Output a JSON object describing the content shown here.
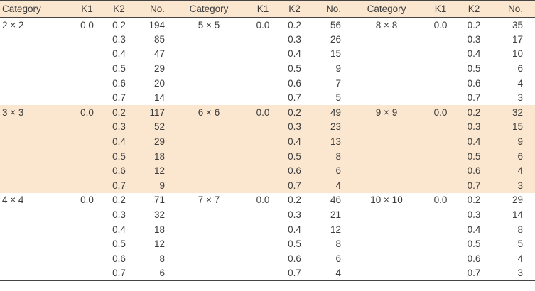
{
  "colors": {
    "band": "#fbe7cf",
    "text": "#3c3c3c",
    "rule": "#454545",
    "page_background": "#ffffff"
  },
  "table": {
    "headers": [
      "Category",
      "K1",
      "K2",
      "No.",
      "Category",
      "K1",
      "K2",
      "No.",
      "Category",
      "K1",
      "K2",
      "No."
    ],
    "highlight_rows": [
      6,
      11
    ],
    "rows": [
      [
        "2 × 2",
        "0.0",
        "0.2",
        "194",
        "5 × 5",
        "0.0",
        "0.2",
        "56",
        "8 × 8",
        "0.0",
        "0.2",
        "35"
      ],
      [
        "",
        "",
        "0.3",
        "85",
        "",
        "",
        "0.3",
        "26",
        "",
        "",
        "0.3",
        "17"
      ],
      [
        "",
        "",
        "0.4",
        "47",
        "",
        "",
        "0.4",
        "15",
        "",
        "",
        "0.4",
        "10"
      ],
      [
        "",
        "",
        "0.5",
        "29",
        "",
        "",
        "0.5",
        "9",
        "",
        "",
        "0.5",
        "6"
      ],
      [
        "",
        "",
        "0.6",
        "20",
        "",
        "",
        "0.6",
        "7",
        "",
        "",
        "0.6",
        "4"
      ],
      [
        "",
        "",
        "0.7",
        "14",
        "",
        "",
        "0.7",
        "5",
        "",
        "",
        "0.7",
        "3"
      ],
      [
        "3 × 3",
        "0.0",
        "0.2",
        "117",
        "6 × 6",
        "0.0",
        "0.2",
        "49",
        "9 × 9",
        "0.0",
        "0.2",
        "32"
      ],
      [
        "",
        "",
        "0.3",
        "52",
        "",
        "",
        "0.3",
        "23",
        "",
        "",
        "0.3",
        "15"
      ],
      [
        "",
        "",
        "0.4",
        "29",
        "",
        "",
        "0.4",
        "13",
        "",
        "",
        "0.4",
        "9"
      ],
      [
        "",
        "",
        "0.5",
        "18",
        "",
        "",
        "0.5",
        "8",
        "",
        "",
        "0.5",
        "6"
      ],
      [
        "",
        "",
        "0.6",
        "12",
        "",
        "",
        "0.6",
        "6",
        "",
        "",
        "0.6",
        "4"
      ],
      [
        "",
        "",
        "0.7",
        "9",
        "",
        "",
        "0.7",
        "4",
        "",
        "",
        "0.7",
        "3"
      ],
      [
        "4 × 4",
        "0.0",
        "0.2",
        "71",
        "7 × 7",
        "0.0",
        "0.2",
        "46",
        "10 × 10",
        "0.0",
        "0.2",
        "29"
      ],
      [
        "",
        "",
        "0.3",
        "32",
        "",
        "",
        "0.3",
        "21",
        "",
        "",
        "0.3",
        "14"
      ],
      [
        "",
        "",
        "0.4",
        "18",
        "",
        "",
        "0.4",
        "12",
        "",
        "",
        "0.4",
        "8"
      ],
      [
        "",
        "",
        "0.5",
        "12",
        "",
        "",
        "0.5",
        "8",
        "",
        "",
        "0.5",
        "5"
      ],
      [
        "",
        "",
        "0.6",
        "8",
        "",
        "",
        "0.6",
        "6",
        "",
        "",
        "0.6",
        "4"
      ],
      [
        "",
        "",
        "0.7",
        "6",
        "",
        "",
        "0.7",
        "4",
        "",
        "",
        "0.7",
        "3"
      ]
    ]
  }
}
